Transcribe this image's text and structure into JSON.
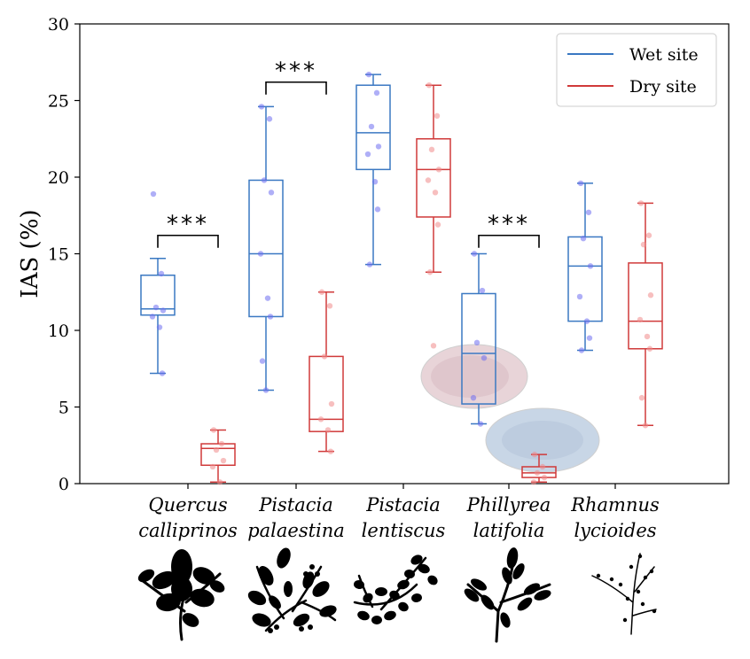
{
  "chart_data": {
    "type": "box",
    "ylabel": "IAS (%)",
    "ylim": [
      0,
      30
    ],
    "yticks": [
      0,
      5,
      10,
      15,
      20,
      25,
      30
    ],
    "grid": false,
    "legend_position": "top-right",
    "categories": [
      {
        "line1": "Quercus",
        "line2": "calliprinos"
      },
      {
        "line1": "Pistacia",
        "line2": "palaestina"
      },
      {
        "line1": "Pistacia",
        "line2": "lentiscus"
      },
      {
        "line1": "Phillyrea",
        "line2": "latifolia"
      },
      {
        "line1": "Rhamnus",
        "line2": "lycioides"
      }
    ],
    "series": [
      {
        "name": "Wet site",
        "color": "#3a78c2",
        "point_color": "#6e6ef0",
        "boxes": [
          {
            "whisker_low": 7.2,
            "q1": 11.0,
            "median": 11.4,
            "q3": 13.6,
            "whisker_high": 14.7,
            "points": [
              18.9,
              13.7,
              11.5,
              11.3,
              10.9,
              10.2,
              7.2
            ]
          },
          {
            "whisker_low": 6.1,
            "q1": 10.9,
            "median": 15.0,
            "q3": 19.8,
            "whisker_high": 24.6,
            "points": [
              24.6,
              23.8,
              19.8,
              19.0,
              15.0,
              12.1,
              10.9,
              8.0,
              6.1
            ]
          },
          {
            "whisker_low": 14.3,
            "q1": 20.5,
            "median": 22.9,
            "q3": 26.0,
            "whisker_high": 26.7,
            "points": [
              26.7,
              25.5,
              23.3,
              22.0,
              21.5,
              19.7,
              17.9,
              14.3
            ]
          },
          {
            "whisker_low": 3.9,
            "q1": 5.2,
            "median": 8.5,
            "q3": 12.4,
            "whisker_high": 15.0,
            "points": [
              15.0,
              12.6,
              9.2,
              8.2,
              5.6,
              3.9
            ]
          },
          {
            "whisker_low": 8.7,
            "q1": 10.6,
            "median": 14.2,
            "q3": 16.1,
            "whisker_high": 19.6,
            "points": [
              19.6,
              17.7,
              16.0,
              14.2,
              12.2,
              10.6,
              9.5,
              8.7
            ]
          }
        ]
      },
      {
        "name": "Dry site",
        "color": "#d03a3a",
        "point_color": "#f08a8a",
        "boxes": [
          {
            "whisker_low": 0.1,
            "q1": 1.2,
            "median": 2.3,
            "q3": 2.6,
            "whisker_high": 3.5,
            "points": [
              3.5,
              2.6,
              2.2,
              1.5,
              1.1,
              0.1
            ]
          },
          {
            "whisker_low": 2.1,
            "q1": 3.4,
            "median": 4.2,
            "q3": 8.3,
            "whisker_high": 12.5,
            "points": [
              12.5,
              11.6,
              8.3,
              5.2,
              4.2,
              3.5,
              2.1
            ]
          },
          {
            "whisker_low": 13.8,
            "q1": 17.4,
            "median": 20.5,
            "q3": 22.5,
            "whisker_high": 26.0,
            "points": [
              26.0,
              24.0,
              21.8,
              20.5,
              19.8,
              19.0,
              16.9,
              13.8,
              9.0
            ]
          },
          {
            "whisker_low": 0.1,
            "q1": 0.4,
            "median": 0.7,
            "q3": 1.1,
            "whisker_high": 1.9,
            "points": [
              1.9,
              1.1,
              0.7,
              0.4,
              0.1
            ]
          },
          {
            "whisker_low": 3.8,
            "q1": 8.8,
            "median": 10.6,
            "q3": 14.4,
            "whisker_high": 18.3,
            "points": [
              18.3,
              16.2,
              15.6,
              12.3,
              10.7,
              9.6,
              8.8,
              5.6,
              3.8
            ]
          }
        ]
      }
    ],
    "significance": [
      {
        "category_index": 0,
        "label": "***",
        "y": 16.2
      },
      {
        "category_index": 1,
        "label": "***",
        "y": 26.2
      },
      {
        "category_index": 3,
        "label": "***",
        "y": 16.2
      }
    ]
  }
}
